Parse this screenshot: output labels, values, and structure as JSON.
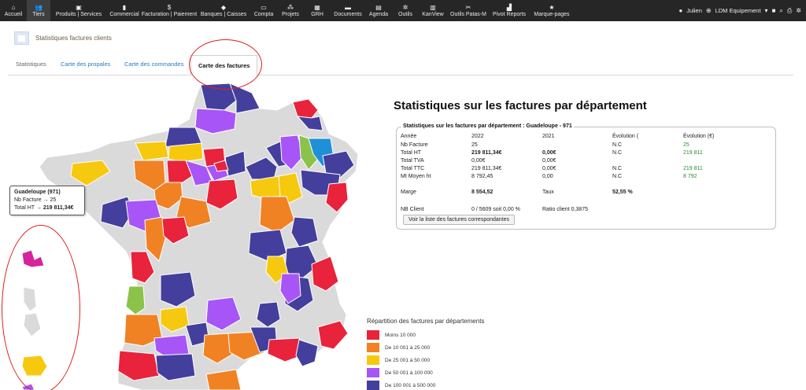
{
  "colors": {
    "topbar_bg": "#262626",
    "cls1": "#e8233b",
    "cls2": "#f08224",
    "cls3": "#f6c90e",
    "cls4": "#a855f7",
    "cls5": "#443f9c",
    "nodata": "#dadada",
    "special_green": "#8bc34a",
    "special_blue": "#1e90d8",
    "guadeloupe": "#d6249f"
  },
  "nav": [
    {
      "icon": "home-icon",
      "glyph": "⌂",
      "label": "Accueil"
    },
    {
      "icon": "users-icon",
      "glyph": "👥",
      "label": "Tiers"
    },
    {
      "icon": "cube-icon",
      "glyph": "▣",
      "label": "Produits | Services"
    },
    {
      "icon": "briefcase-icon",
      "glyph": "▮",
      "label": "Commercial"
    },
    {
      "icon": "file-dollar-icon",
      "glyph": "$",
      "label": "Facturation | Paiement"
    },
    {
      "icon": "bank-icon",
      "glyph": "◆",
      "label": "Banques | Caisses"
    },
    {
      "icon": "money-icon",
      "glyph": "▭",
      "label": "Compta"
    },
    {
      "icon": "sitemap-icon",
      "glyph": "⁂",
      "label": "Projets"
    },
    {
      "icon": "building-icon",
      "glyph": "▦",
      "label": "GRH"
    },
    {
      "icon": "folder-icon",
      "glyph": "▬",
      "label": "Documents"
    },
    {
      "icon": "calendar-icon",
      "glyph": "▤",
      "label": "Agenda"
    },
    {
      "icon": "gear-icon",
      "glyph": "✲",
      "label": "Outils"
    },
    {
      "icon": "kanban-icon",
      "glyph": "▥",
      "label": "KanView"
    },
    {
      "icon": "tools-icon",
      "glyph": "✂",
      "label": "Outils Patas-M"
    },
    {
      "icon": "bar-chart-icon",
      "glyph": "▟",
      "label": "Pivot Reports"
    },
    {
      "icon": "star-icon",
      "glyph": "★",
      "label": "Marque-pages"
    }
  ],
  "user": {
    "name": "Julien",
    "company": "LDM Equipement"
  },
  "page_title": "Statistiques factures clients",
  "tabs": [
    "Statistiques",
    "Carte des propales",
    "Carte des commandes",
    "Carte des factures"
  ],
  "tooltip": {
    "title": "Guadeloupe (971)",
    "line1": "Nb Facture → 25",
    "line2_label": "Total HT →",
    "line2_value": "219 811,34€"
  },
  "stats": {
    "heading": "Statistiques sur les factures par département",
    "legend": "Statistiques sur les factures par département : Guadeloupe - 971",
    "head": {
      "label": "Année",
      "y1": "2022",
      "y2": "2021",
      "evo_pct": "Évolution (",
      "evo_eur": "Évolution (€)"
    },
    "rows": [
      {
        "label": "Nb Facture",
        "y1": "25",
        "y2": "",
        "evo_pct": "N.C",
        "evo_eur": "25",
        "bold": false
      },
      {
        "label": "Total HT",
        "y1": "219 811,34€",
        "y2": "0,00€",
        "evo_pct": "N.C",
        "evo_eur": "219 811",
        "bold": true
      },
      {
        "label": "Total TVA",
        "y1": "0,00€",
        "y2": "0,00€",
        "evo_pct": "",
        "evo_eur": "",
        "bold": false
      },
      {
        "label": "Total TTC",
        "y1": "219 811,34€",
        "y2": "0,00€",
        "evo_pct": "N.C",
        "evo_eur": "219 811",
        "bold": false
      },
      {
        "label": "Mt Moyen ht",
        "y1": "8 792,45",
        "y2": "0,00",
        "evo_pct": "N.C",
        "evo_eur": "8 792",
        "bold": false
      }
    ],
    "marge_label": "Marge",
    "marge_value": "8 554,52",
    "taux_label": "Taux",
    "taux_value": "52,55 %",
    "nb_client_label": "NB Client",
    "nb_client_value": "0 / 5609 soit 0,00 %",
    "ratio_label": "Ratio client 0,3875",
    "button": "Voir la liste des factures correspondantes"
  },
  "legend": {
    "title": "Répartition des factures par départements",
    "items": [
      {
        "label": "Moins 10 000",
        "color": "#e8233b"
      },
      {
        "label": "De 10 001 à 25 000",
        "color": "#f08224"
      },
      {
        "label": "De 25 001 à 50 000",
        "color": "#f6c90e"
      },
      {
        "label": "De 50 001 à 100 000",
        "color": "#a855f7"
      },
      {
        "label": "De 100 001 à 500 000",
        "color": "#443f9c"
      }
    ]
  }
}
